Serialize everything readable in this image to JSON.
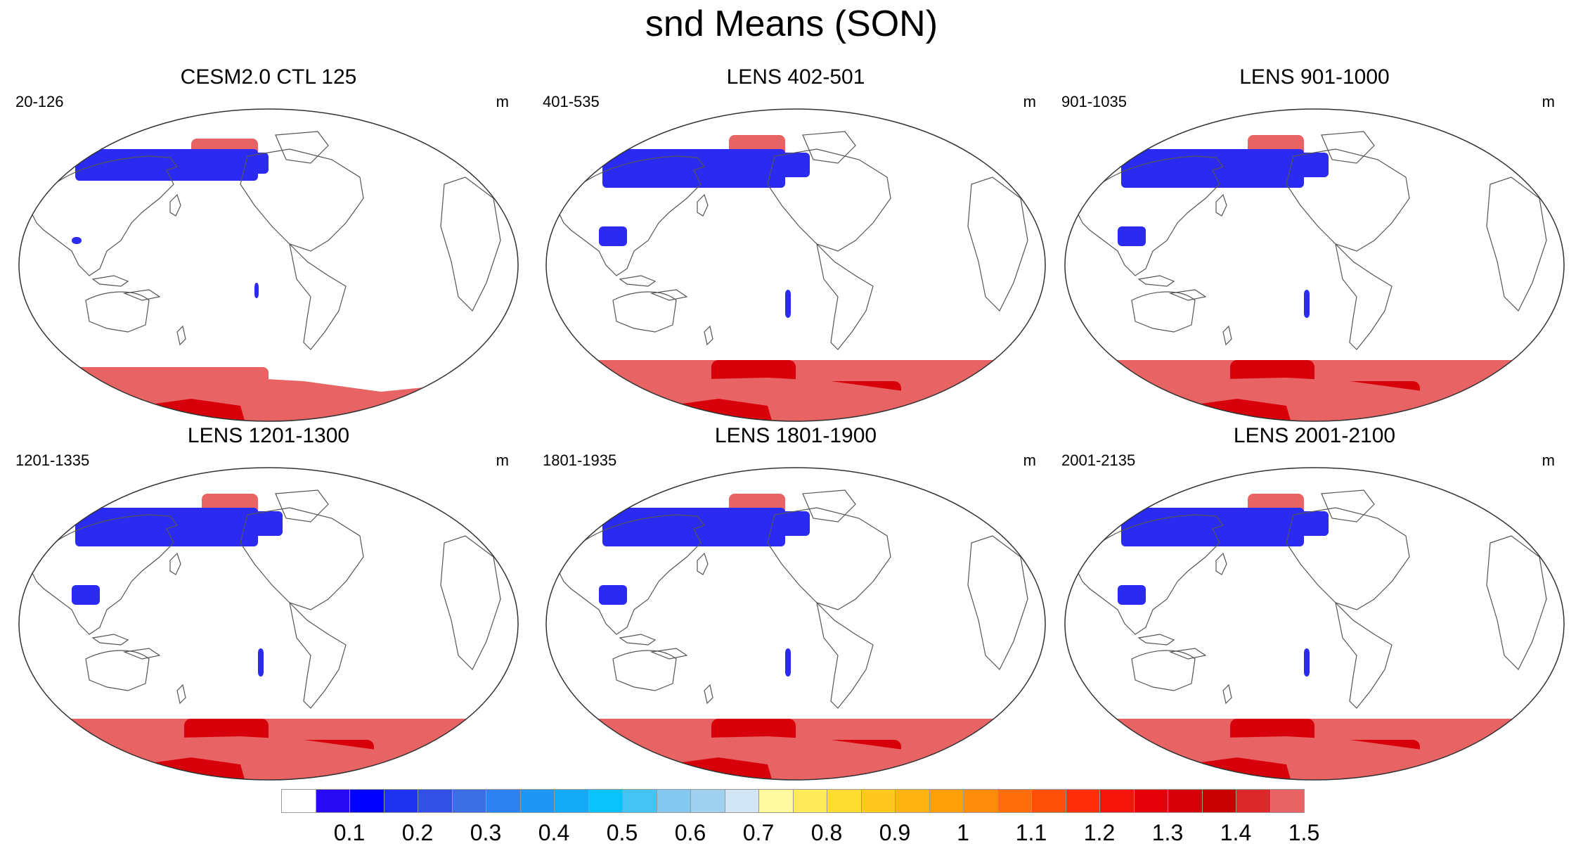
{
  "figure": {
    "title": "snd Means (SON)"
  },
  "panels": [
    {
      "title": "CESM2.0 CTL 125",
      "range": "20-126",
      "units": "m"
    },
    {
      "title": "LENS 402-501",
      "range": "401-535",
      "units": "m"
    },
    {
      "title": "LENS 901-1000",
      "range": "901-1035",
      "units": "m"
    },
    {
      "title": "LENS 1201-1300",
      "range": "1201-1335",
      "units": "m"
    },
    {
      "title": "LENS 1801-1900",
      "range": "1801-1935",
      "units": "m"
    },
    {
      "title": "LENS 2001-2100",
      "range": "2001-2135",
      "units": "m"
    }
  ],
  "colorbar": {
    "labels": [
      "0.1",
      "0.2",
      "0.3",
      "0.4",
      "0.5",
      "0.6",
      "0.7",
      "0.8",
      "0.9",
      "1",
      "1.1",
      "1.2",
      "1.3",
      "1.4",
      "1.5"
    ],
    "colors": [
      "#ffffff",
      "#2a0af5",
      "#0000ff",
      "#1e32f0",
      "#3250e6",
      "#3c6ee6",
      "#2d82f0",
      "#1e96f5",
      "#14aaf8",
      "#0ac3fa",
      "#46c3f5",
      "#82c8f0",
      "#a0d2f0",
      "#d2e6f5",
      "#fffaa0",
      "#ffeb5a",
      "#ffdc32",
      "#ffc81e",
      "#ffb414",
      "#ffa00a",
      "#ff8c0a",
      "#ff6e0a",
      "#ff500a",
      "#ff2d0a",
      "#f5140a",
      "#e6000a",
      "#d7000a",
      "#c80000",
      "#dc2828",
      "#e86464"
    ]
  }
}
